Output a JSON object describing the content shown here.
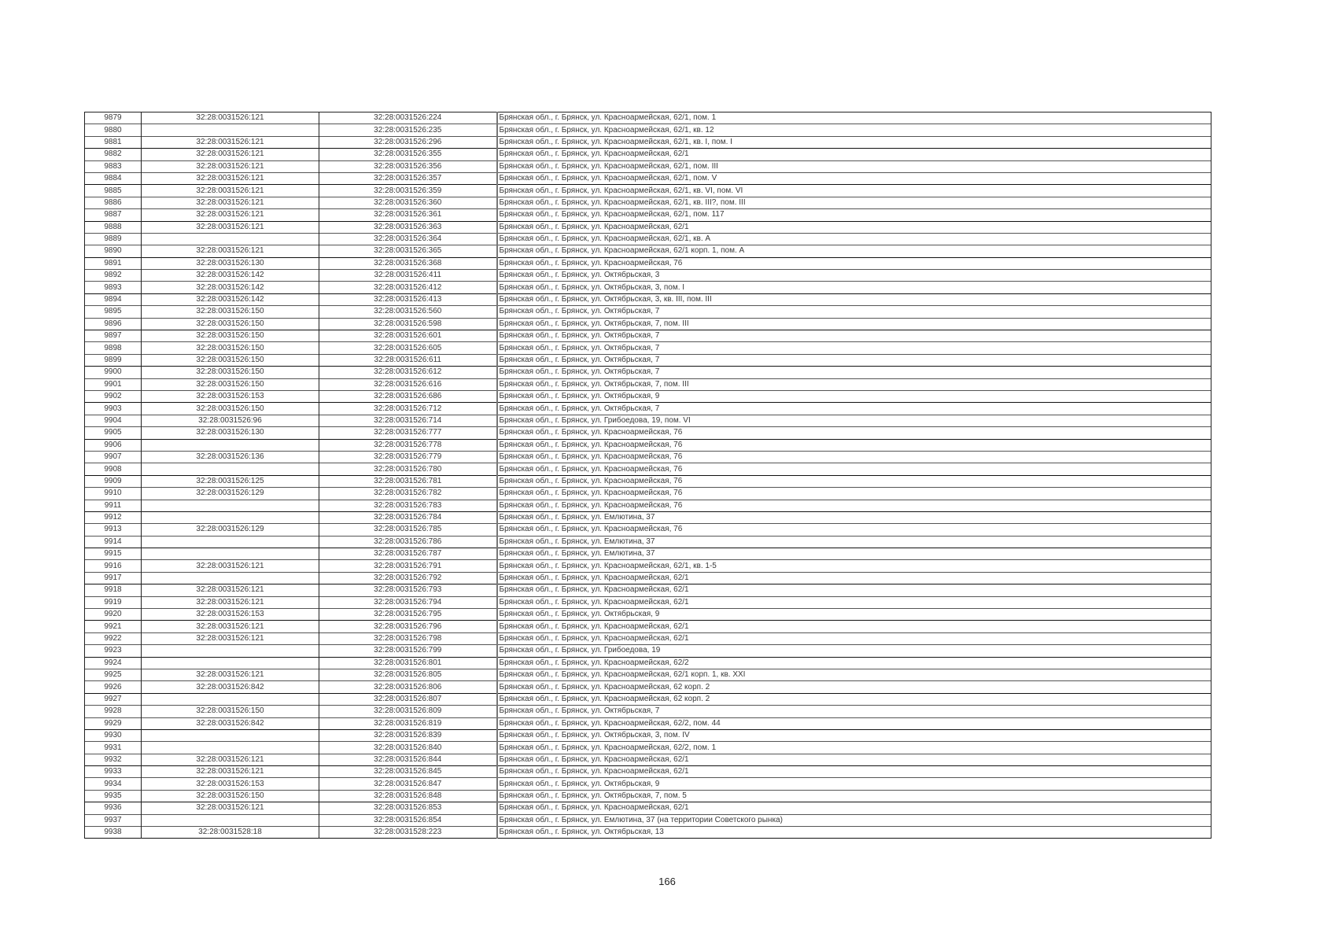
{
  "table": {
    "rows": [
      [
        "9879",
        "32:28:0031526:121",
        "32:28:0031526:224",
        "Брянская обл., г. Брянск, ул. Красноармейская, 62/1, пом. 1"
      ],
      [
        "9880",
        "",
        "32:28:0031526:235",
        "Брянская обл., г. Брянск, ул. Красноармейская, 62/1, кв. 12"
      ],
      [
        "9881",
        "32:28:0031526:121",
        "32:28:0031526:296",
        "Брянская обл., г. Брянск, ул. Красноармейская, 62/1, кв. I, пом. I"
      ],
      [
        "9882",
        "32:28:0031526:121",
        "32:28:0031526:355",
        "Брянская обл., г. Брянск, ул. Красноармейская, 62/1"
      ],
      [
        "9883",
        "32:28:0031526:121",
        "32:28:0031526:356",
        "Брянская обл., г. Брянск, ул. Красноармейская, 62/1, пом. III"
      ],
      [
        "9884",
        "32:28:0031526:121",
        "32:28:0031526:357",
        "Брянская обл., г. Брянск, ул. Красноармейская, 62/1, пом. V"
      ],
      [
        "9885",
        "32:28:0031526:121",
        "32:28:0031526:359",
        "Брянская обл., г. Брянск, ул. Красноармейская, 62/1, кв. VI, пом. VI"
      ],
      [
        "9886",
        "32:28:0031526:121",
        "32:28:0031526:360",
        "Брянская обл., г. Брянск, ул. Красноармейская, 62/1, кв. III?, пом. III"
      ],
      [
        "9887",
        "32:28:0031526:121",
        "32:28:0031526:361",
        "Брянская обл., г. Брянск, ул. Красноармейская, 62/1, пом. 117"
      ],
      [
        "9888",
        "32:28:0031526:121",
        "32:28:0031526:363",
        "Брянская обл., г. Брянск, ул. Красноармейская, 62/1"
      ],
      [
        "9889",
        "",
        "32:28:0031526:364",
        "Брянская обл., г. Брянск, ул. Красноармейская, 62/1, кв. А"
      ],
      [
        "9890",
        "32:28:0031526:121",
        "32:28:0031526:365",
        "Брянская обл., г. Брянск, ул. Красноармейская, 62/1 корп. 1, пом. А"
      ],
      [
        "9891",
        "32:28:0031526:130",
        "32:28:0031526:368",
        "Брянская обл., г. Брянск, ул. Красноармейская, 76"
      ],
      [
        "9892",
        "32:28:0031526:142",
        "32:28:0031526:411",
        "Брянская обл., г. Брянск, ул. Октябрьская, 3"
      ],
      [
        "9893",
        "32:28:0031526:142",
        "32:28:0031526:412",
        "Брянская обл., г. Брянск, ул. Октябрьская, 3, пом. I"
      ],
      [
        "9894",
        "32:28:0031526:142",
        "32:28:0031526:413",
        "Брянская обл., г. Брянск, ул. Октябрьская, 3, кв. III, пом. III"
      ],
      [
        "9895",
        "32:28:0031526:150",
        "32:28:0031526:560",
        "Брянская обл., г. Брянск, ул. Октябрьская, 7"
      ],
      [
        "9896",
        "32:28:0031526:150",
        "32:28:0031526:598",
        "Брянская обл., г. Брянск, ул. Октябрьская, 7, пом. III"
      ],
      [
        "9897",
        "32:28:0031526:150",
        "32:28:0031526:601",
        "Брянская обл., г. Брянск, ул. Октябрьская, 7"
      ],
      [
        "9898",
        "32:28:0031526:150",
        "32:28:0031526:605",
        "Брянская обл., г. Брянск, ул. Октябрьская, 7"
      ],
      [
        "9899",
        "32:28:0031526:150",
        "32:28:0031526:611",
        "Брянская обл., г. Брянск, ул. Октябрьская, 7"
      ],
      [
        "9900",
        "32:28:0031526:150",
        "32:28:0031526:612",
        "Брянская обл., г. Брянск, ул. Октябрьская, 7"
      ],
      [
        "9901",
        "32:28:0031526:150",
        "32:28:0031526:616",
        "Брянская обл., г. Брянск, ул. Октябрьская, 7, пом. III"
      ],
      [
        "9902",
        "32:28:0031526:153",
        "32:28:0031526:686",
        "Брянская обл., г. Брянск, ул. Октябрьская, 9"
      ],
      [
        "9903",
        "32:28:0031526:150",
        "32:28:0031526:712",
        "Брянская обл., г. Брянск, ул. Октябрьская, 7"
      ],
      [
        "9904",
        "32:28:0031526:96",
        "32:28:0031526:714",
        "Брянская обл., г. Брянск, ул. Грибоедова, 19, пом. VI"
      ],
      [
        "9905",
        "32:28:0031526:130",
        "32:28:0031526:777",
        "Брянская обл., г. Брянск, ул. Красноармейская, 76"
      ],
      [
        "9906",
        "",
        "32:28:0031526:778",
        "Брянская обл., г. Брянск, ул. Красноармейская, 76"
      ],
      [
        "9907",
        "32:28:0031526:136",
        "32:28:0031526:779",
        "Брянская обл., г. Брянск, ул. Красноармейская, 76"
      ],
      [
        "9908",
        "",
        "32:28:0031526:780",
        "Брянская обл., г. Брянск, ул. Красноармейская, 76"
      ],
      [
        "9909",
        "32:28:0031526:125",
        "32:28:0031526:781",
        "Брянская обл., г. Брянск, ул. Красноармейская, 76"
      ],
      [
        "9910",
        "32:28:0031526:129",
        "32:28:0031526:782",
        "Брянская обл., г. Брянск, ул. Красноармейская, 76"
      ],
      [
        "9911",
        "",
        "32:28:0031526:783",
        "Брянская обл., г. Брянск, ул. Красноармейская, 76"
      ],
      [
        "9912",
        "",
        "32:28:0031526:784",
        "Брянская обл., г. Брянск, ул. Емлютина, 37"
      ],
      [
        "9913",
        "32:28:0031526:129",
        "32:28:0031526:785",
        "Брянская обл., г. Брянск, ул. Красноармейская, 76"
      ],
      [
        "9914",
        "",
        "32:28:0031526:786",
        "Брянская обл., г. Брянск, ул. Емлютина, 37"
      ],
      [
        "9915",
        "",
        "32:28:0031526:787",
        "Брянская обл., г. Брянск, ул. Емлютина, 37"
      ],
      [
        "9916",
        "32:28:0031526:121",
        "32:28:0031526:791",
        "Брянская обл., г. Брянск, ул. Красноармейская, 62/1, кв. 1-5"
      ],
      [
        "9917",
        "",
        "32:28:0031526:792",
        "Брянская обл., г. Брянск, ул. Красноармейская, 62/1"
      ],
      [
        "9918",
        "32:28:0031526:121",
        "32:28:0031526:793",
        "Брянская обл., г. Брянск, ул. Красноармейская, 62/1"
      ],
      [
        "9919",
        "32:28:0031526:121",
        "32:28:0031526:794",
        "Брянская обл., г. Брянск, ул. Красноармейская, 62/1"
      ],
      [
        "9920",
        "32:28:0031526:153",
        "32:28:0031526:795",
        "Брянская обл., г. Брянск, ул. Октябрьская, 9"
      ],
      [
        "9921",
        "32:28:0031526:121",
        "32:28:0031526:796",
        "Брянская обл., г. Брянск, ул. Красноармейская, 62/1"
      ],
      [
        "9922",
        "32:28:0031526:121",
        "32:28:0031526:798",
        "Брянская обл., г. Брянск, ул. Красноармейская, 62/1"
      ],
      [
        "9923",
        "",
        "32:28:0031526:799",
        "Брянская обл., г. Брянск, ул. Грибоедова, 19"
      ],
      [
        "9924",
        "",
        "32:28:0031526:801",
        "Брянская обл., г. Брянск, ул. Красноармейская, 62/2"
      ],
      [
        "9925",
        "32:28:0031526:121",
        "32:28:0031526:805",
        "Брянская обл., г. Брянск, ул. Красноармейская, 62/1 корп. 1, кв. XXI"
      ],
      [
        "9926",
        "32:28:0031526:842",
        "32:28:0031526:806",
        "Брянская обл., г. Брянск, ул. Красноармейская, 62 корп. 2"
      ],
      [
        "9927",
        "",
        "32:28:0031526:807",
        "Брянская обл., г. Брянск, ул. Красноармейская, 62 корп. 2"
      ],
      [
        "9928",
        "32:28:0031526:150",
        "32:28:0031526:809",
        "Брянская обл., г. Брянск, ул. Октябрьская, 7"
      ],
      [
        "9929",
        "32:28:0031526:842",
        "32:28:0031526:819",
        "Брянская обл., г. Брянск, ул. Красноармейская, 62/2, пом. 44"
      ],
      [
        "9930",
        "",
        "32:28:0031526:839",
        "Брянская обл., г. Брянск, ул. Октябрьская, 3, пом. IV"
      ],
      [
        "9931",
        "",
        "32:28:0031526:840",
        "Брянская обл., г. Брянск, ул. Красноармейская, 62/2, пом. 1"
      ],
      [
        "9932",
        "32:28:0031526:121",
        "32:28:0031526:844",
        "Брянская обл., г. Брянск, ул. Красноармейская, 62/1"
      ],
      [
        "9933",
        "32:28:0031526:121",
        "32:28:0031526:845",
        "Брянская обл., г. Брянск, ул. Красноармейская, 62/1"
      ],
      [
        "9934",
        "32:28:0031526:153",
        "32:28:0031526:847",
        "Брянская обл., г. Брянск, ул. Октябрьская, 9"
      ],
      [
        "9935",
        "32:28:0031526:150",
        "32:28:0031526:848",
        "Брянская обл., г. Брянск, ул. Октябрьская, 7, пом. 5"
      ],
      [
        "9936",
        "32:28:0031526:121",
        "32:28:0031526:853",
        "Брянская обл., г. Брянск, ул. Красноармейская, 62/1"
      ],
      [
        "9937",
        "",
        "32:28:0031526:854",
        "Брянская обл., г. Брянск, ул. Емлютина, 37 (на территории Советского рынка)"
      ],
      [
        "9938",
        "32:28:0031528:18",
        "32:28:0031528:223",
        "Брянская обл., г. Брянск, ул. Октябрьская, 13"
      ]
    ]
  },
  "page_number": "166"
}
